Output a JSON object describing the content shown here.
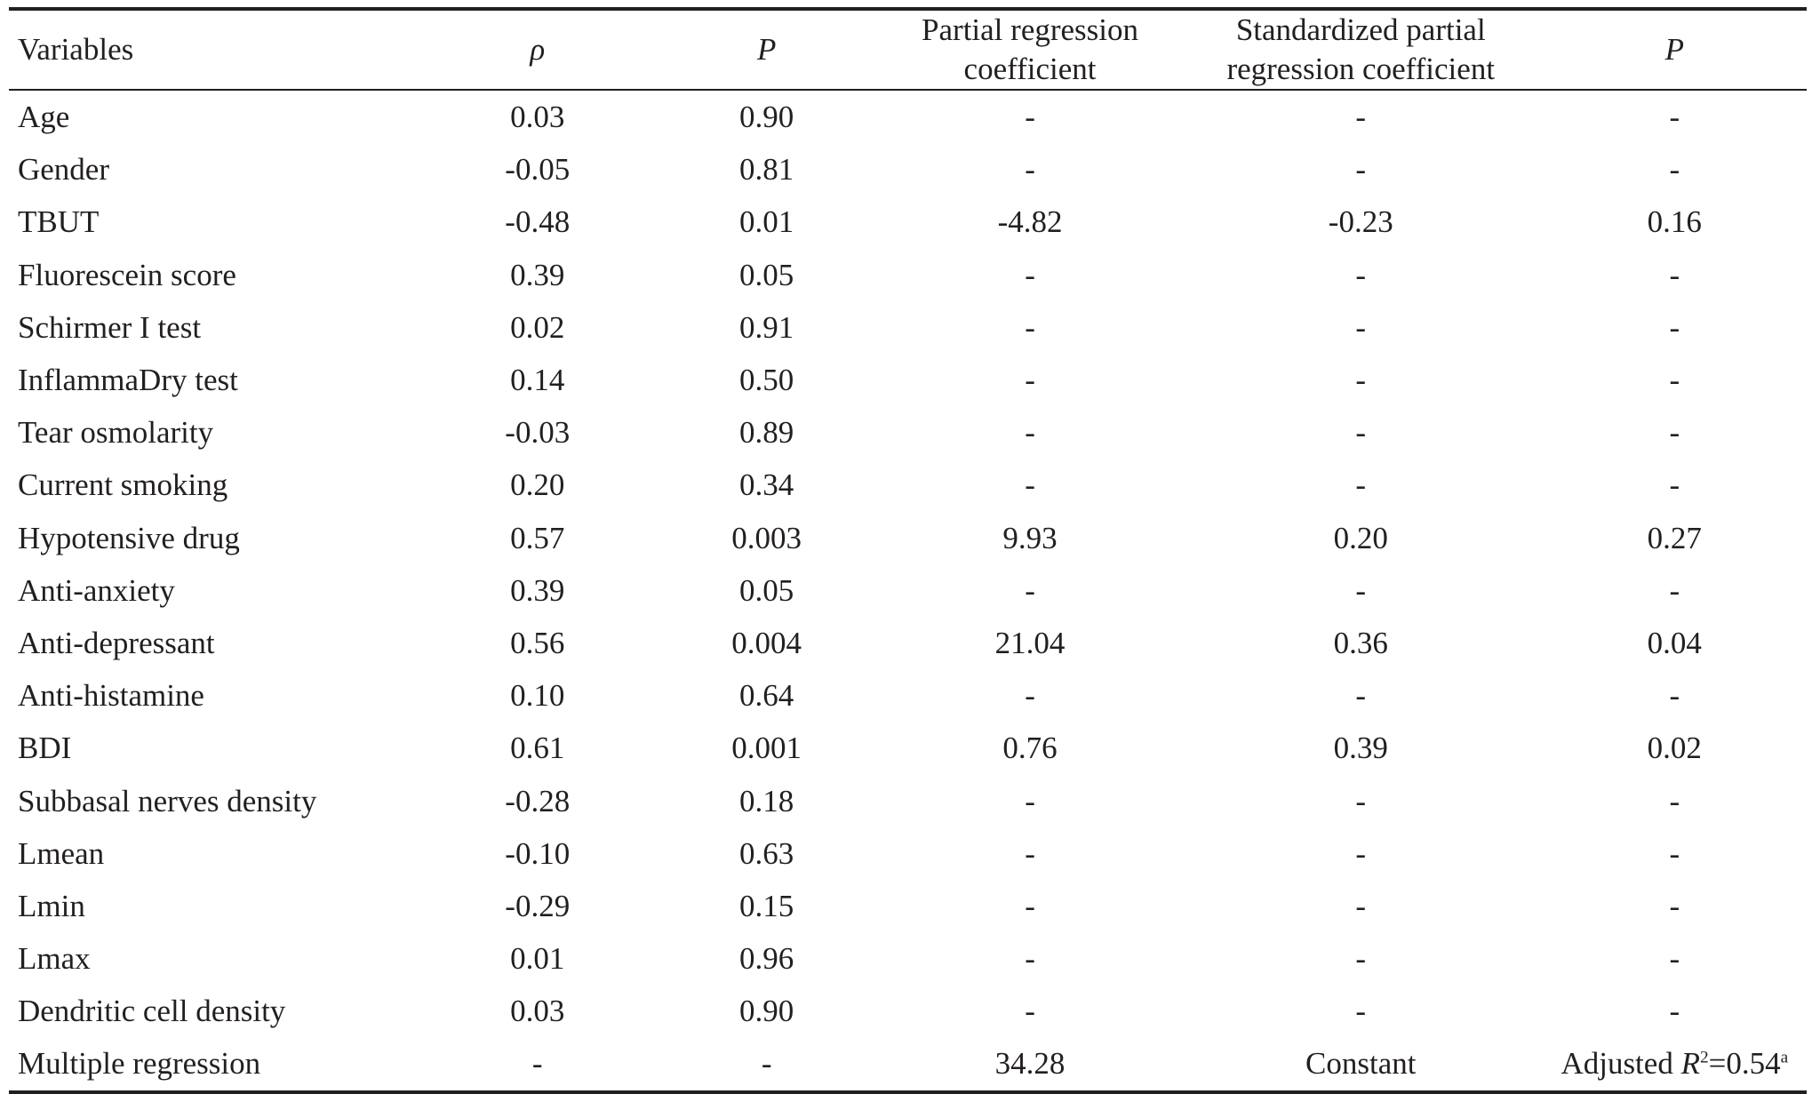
{
  "table": {
    "headers": [
      "Variables",
      "ρ",
      "P",
      [
        "Partial regression",
        "coefficient"
      ],
      [
        "Standardized partial",
        "regression coefficient"
      ],
      "P"
    ],
    "rows": [
      [
        "Age",
        "0.03",
        "0.90",
        "-",
        "-",
        "-"
      ],
      [
        "Gender",
        "-0.05",
        "0.81",
        "-",
        "-",
        "-"
      ],
      [
        "TBUT",
        "-0.48",
        "0.01",
        "-4.82",
        "-0.23",
        "0.16"
      ],
      [
        "Fluorescein score",
        "0.39",
        "0.05",
        "-",
        "-",
        "-"
      ],
      [
        "Schirmer I test",
        "0.02",
        "0.91",
        "-",
        "-",
        "-"
      ],
      [
        "InflammaDry test",
        "0.14",
        "0.50",
        "-",
        "-",
        "-"
      ],
      [
        "Tear osmolarity",
        "-0.03",
        "0.89",
        "-",
        "-",
        "-"
      ],
      [
        "Current smoking",
        "0.20",
        "0.34",
        "-",
        "-",
        "-"
      ],
      [
        "Hypotensive drug",
        "0.57",
        "0.003",
        "9.93",
        "0.20",
        "0.27"
      ],
      [
        "Anti-anxiety",
        "0.39",
        "0.05",
        "-",
        "-",
        "-"
      ],
      [
        "Anti-depressant",
        "0.56",
        "0.004",
        "21.04",
        "0.36",
        "0.04"
      ],
      [
        "Anti-histamine",
        "0.10",
        "0.64",
        "-",
        "-",
        "-"
      ],
      [
        "BDI",
        "0.61",
        "0.001",
        "0.76",
        "0.39",
        "0.02"
      ],
      [
        "Subbasal nerves density",
        "-0.28",
        "0.18",
        "-",
        "-",
        "-"
      ],
      [
        "Lmean",
        "-0.10",
        "0.63",
        "-",
        "-",
        "-"
      ],
      [
        "Lmin",
        "-0.29",
        "0.15",
        "-",
        "-",
        "-"
      ],
      [
        "Lmax",
        "0.01",
        "0.96",
        "-",
        "-",
        "-"
      ],
      [
        "Dendritic cell density",
        "0.03",
        "0.90",
        "-",
        "-",
        "-"
      ]
    ],
    "final_row": {
      "label": "Multiple regression",
      "rho": "-",
      "p": "-",
      "partial": "34.28",
      "standardized": "Constant",
      "adjusted_prefix": "Adjusted ",
      "adjusted_r": "R",
      "adjusted_sup2": "2",
      "adjusted_value": "=0.54",
      "adjusted_note": "a"
    }
  }
}
